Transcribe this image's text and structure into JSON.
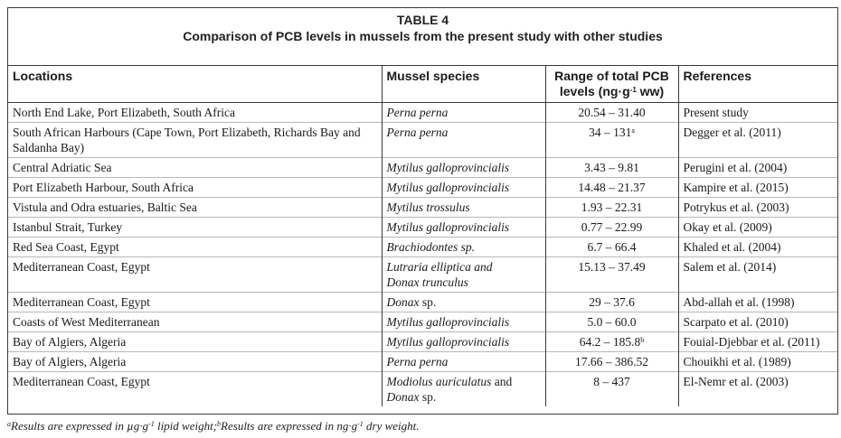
{
  "caption": {
    "table_label": "TABLE 4",
    "title": "Comparison of PCB levels in mussels from the present study with other studies"
  },
  "headers": {
    "locations": "Locations",
    "species": "Mussel species",
    "range_line1": "Range of total PCB",
    "range_line2_pre": "levels (ng·g",
    "range_line2_sup": "-1",
    "range_line2_post": " ww)",
    "references": "References"
  },
  "rows": [
    {
      "location": "North End Lake, Port Elizabeth, South Africa",
      "species": "Perna perna",
      "species2": "",
      "range": "20.54 – 31.40",
      "range_sup": "",
      "reference": "Present study"
    },
    {
      "location": "South African Harbours (Cape Town, Port Elizabeth, Richards Bay and Saldanha Bay)",
      "species": "Perna perna",
      "species2": "",
      "range": "34 – 131",
      "range_sup": "a",
      "reference": "Degger et al. (2011)"
    },
    {
      "location": "Central Adriatic Sea",
      "species": "Mytilus galloprovincialis",
      "species2": "",
      "range": "3.43 – 9.81",
      "range_sup": "",
      "reference": "Perugini et al. (2004)"
    },
    {
      "location": "Port Elizabeth Harbour, South Africa",
      "species": "Mytilus galloprovincialis",
      "species2": "",
      "range": "14.48 – 21.37",
      "range_sup": "",
      "reference": "Kampire et al. (2015)"
    },
    {
      "location": "Vistula and Odra estuaries, Baltic Sea",
      "species": "Mytilus trossulus",
      "species2": "",
      "range": "1.93 – 22.31",
      "range_sup": "",
      "reference": "Potrykus et al. (2003)"
    },
    {
      "location": "Istanbul Strait, Turkey",
      "species": "Mytilus galloprovincialis",
      "species2": "",
      "range": "0.77 – 22.99",
      "range_sup": "",
      "reference": "Okay et al. (2009)"
    },
    {
      "location": "Red Sea Coast, Egypt",
      "species": "Brachiodontes sp.",
      "species2": "",
      "range": "6.7 – 66.4",
      "range_sup": "",
      "reference": "Khaled et al. (2004)"
    },
    {
      "location": "Mediterranean Coast, Egypt",
      "species": "Lutraria elliptica and",
      "species2": "Donax trunculus",
      "range": "15.13 – 37.49",
      "range_sup": "",
      "reference": "Salem et al. (2014)"
    },
    {
      "location": "Mediterranean Coast, Egypt",
      "species": "Donax",
      "species_tail": " sp.",
      "species2": "",
      "range": "29 – 37.6",
      "range_sup": "",
      "reference": "Abd-allah et al. (1998)"
    },
    {
      "location": "Coasts of West Mediterranean",
      "species": "Mytilus galloprovincialis",
      "species2": "",
      "range": "5.0 – 60.0",
      "range_sup": "",
      "reference": "Scarpato et al. (2010)"
    },
    {
      "location": "Bay of Algiers, Algeria",
      "species": "Mytilus galloprovincialis",
      "species2": "",
      "range": "64.2 – 185.8",
      "range_sup": "b",
      "reference": "Fouial-Djebbar et al. (2011)"
    },
    {
      "location": "Bay of Algiers, Algeria",
      "species": "Perna perna",
      "species2": "",
      "range": "17.66 – 386.52",
      "range_sup": "",
      "reference": "Chouikhi et al. (1989)"
    },
    {
      "location": "Mediterranean Coast, Egypt",
      "species": "Modiolus auriculatus",
      "species_tail": " and",
      "species2_it": "Donax",
      "species2_tail": " sp.",
      "range": "8 – 437",
      "range_sup": "",
      "reference": "El-Nemr et al. (2003)"
    }
  ],
  "footnote": {
    "a_mark": "a",
    "a_text_pre": "Results are expressed in µg·g",
    "a_sup": "-1",
    "a_text_post": " lipid weight;",
    "b_mark": "b",
    "b_text_pre": "Results are expressed in ng·g",
    "b_sup": "-1",
    "b_text_post": " dry weight."
  }
}
